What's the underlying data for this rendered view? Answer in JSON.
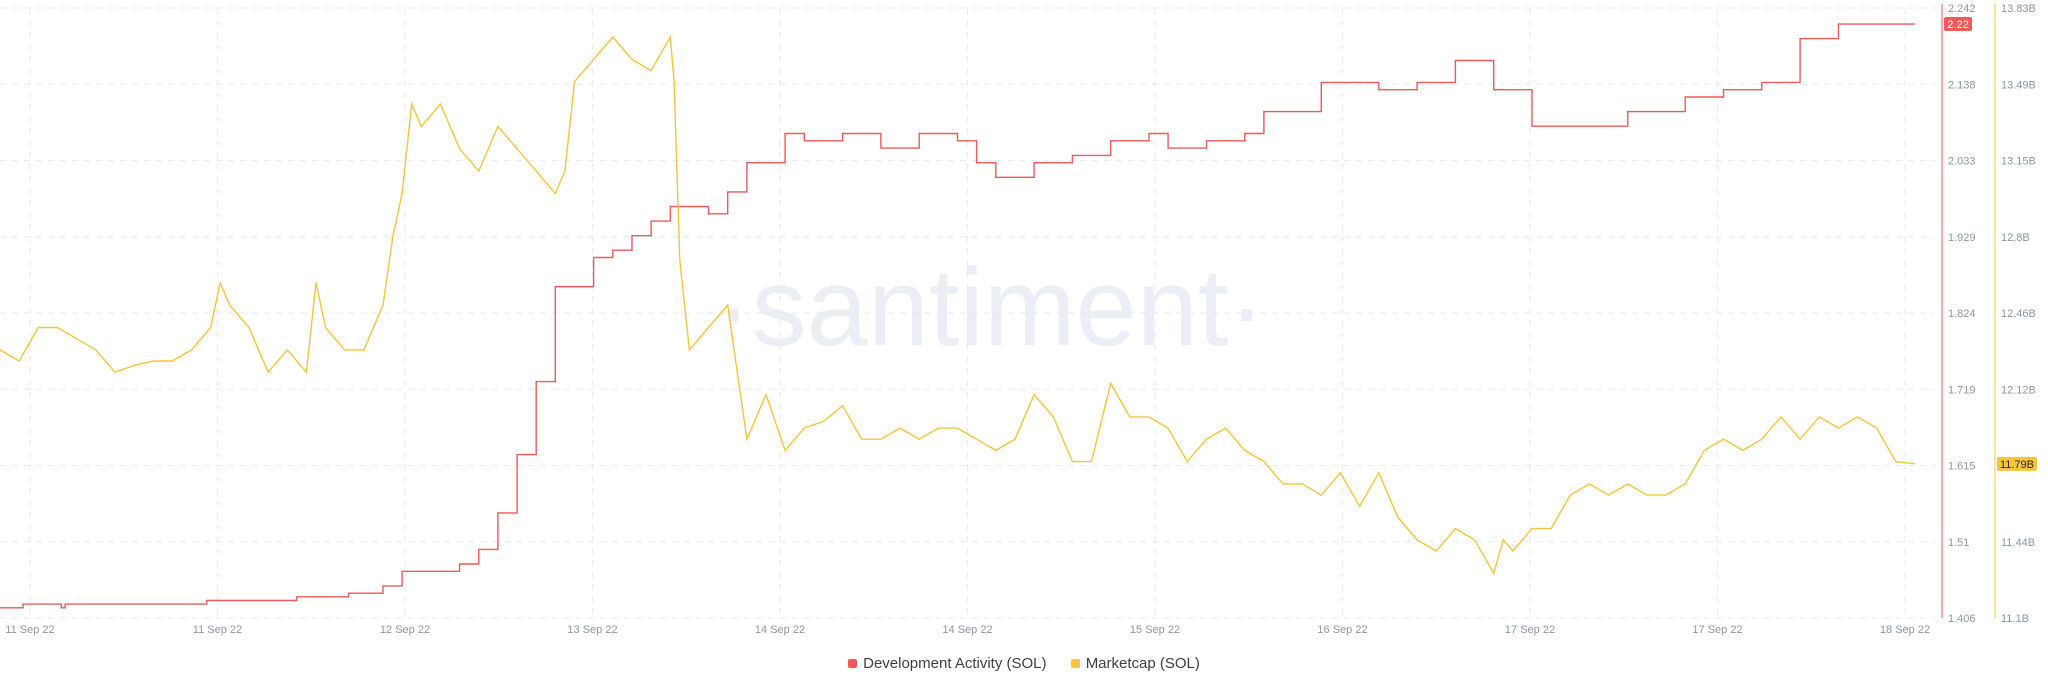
{
  "watermark": "·santiment·",
  "colors": {
    "dev": "#f05a5a",
    "mcap": "#f7c53c",
    "grid": "#e8eaf0",
    "axis_text": "#8e96a8"
  },
  "chart_data": {
    "type": "line",
    "x_labels": [
      "11 Sep 22",
      "11 Sep 22",
      "12 Sep 22",
      "13 Sep 22",
      "14 Sep 22",
      "14 Sep 22",
      "15 Sep 22",
      "16 Sep 22",
      "17 Sep 22",
      "17 Sep 22",
      "18 Sep 22"
    ],
    "grid": true,
    "legend_position": "bottom-center",
    "y_left": {
      "ticks": [
        "2.242",
        "2.138",
        "2.033",
        "1.929",
        "1.824",
        "1.719",
        "1.615",
        "1.51",
        "1.406"
      ],
      "range": [
        1.406,
        2.242
      ],
      "current_value": "2.22"
    },
    "y_right": {
      "ticks": [
        "13.83B",
        "13.49B",
        "13.15B",
        "12.8B",
        "12.46B",
        "12.12B",
        "11.79B",
        "11.44B",
        "11.1B"
      ],
      "range": [
        11.1,
        13.83
      ],
      "current_value": "11.79B"
    },
    "series": [
      {
        "name": "Development Activity (SOL)",
        "axis": "left",
        "step": true,
        "points": [
          [
            0,
            1.42
          ],
          [
            0.01,
            1.42
          ],
          [
            0.012,
            1.425
          ],
          [
            0.03,
            1.425
          ],
          [
            0.032,
            1.42
          ],
          [
            0.034,
            1.425
          ],
          [
            0.1,
            1.425
          ],
          [
            0.108,
            1.43
          ],
          [
            0.15,
            1.43
          ],
          [
            0.155,
            1.435
          ],
          [
            0.18,
            1.435
          ],
          [
            0.182,
            1.44
          ],
          [
            0.185,
            1.44
          ],
          [
            0.2,
            1.45
          ],
          [
            0.21,
            1.47
          ],
          [
            0.24,
            1.48
          ],
          [
            0.25,
            1.5
          ],
          [
            0.26,
            1.55
          ],
          [
            0.27,
            1.63
          ],
          [
            0.28,
            1.73
          ],
          [
            0.29,
            1.86
          ],
          [
            0.31,
            1.9
          ],
          [
            0.32,
            1.91
          ],
          [
            0.33,
            1.93
          ],
          [
            0.34,
            1.95
          ],
          [
            0.35,
            1.97
          ],
          [
            0.36,
            1.97
          ],
          [
            0.37,
            1.96
          ],
          [
            0.38,
            1.99
          ],
          [
            0.39,
            2.03
          ],
          [
            0.41,
            2.07
          ],
          [
            0.42,
            2.06
          ],
          [
            0.44,
            2.07
          ],
          [
            0.46,
            2.05
          ],
          [
            0.48,
            2.07
          ],
          [
            0.5,
            2.06
          ],
          [
            0.51,
            2.03
          ],
          [
            0.52,
            2.01
          ],
          [
            0.54,
            2.03
          ],
          [
            0.56,
            2.04
          ],
          [
            0.58,
            2.06
          ],
          [
            0.6,
            2.07
          ],
          [
            0.61,
            2.05
          ],
          [
            0.63,
            2.06
          ],
          [
            0.65,
            2.07
          ],
          [
            0.66,
            2.1
          ],
          [
            0.69,
            2.14
          ],
          [
            0.72,
            2.13
          ],
          [
            0.74,
            2.14
          ],
          [
            0.76,
            2.15
          ],
          [
            0.76,
            2.17
          ],
          [
            0.78,
            2.13
          ],
          [
            0.8,
            2.08
          ],
          [
            0.82,
            2.08
          ],
          [
            0.85,
            2.1
          ],
          [
            0.88,
            2.12
          ],
          [
            0.9,
            2.13
          ],
          [
            0.92,
            2.14
          ],
          [
            0.94,
            2.2
          ],
          [
            0.96,
            2.22
          ],
          [
            1,
            2.22
          ]
        ]
      },
      {
        "name": "Marketcap (SOL)",
        "axis": "right",
        "step": false,
        "points": [
          [
            0,
            12.3
          ],
          [
            0.01,
            12.25
          ],
          [
            0.02,
            12.4
          ],
          [
            0.03,
            12.4
          ],
          [
            0.04,
            12.35
          ],
          [
            0.05,
            12.3
          ],
          [
            0.06,
            12.2
          ],
          [
            0.07,
            12.23
          ],
          [
            0.08,
            12.25
          ],
          [
            0.09,
            12.25
          ],
          [
            0.1,
            12.3
          ],
          [
            0.11,
            12.4
          ],
          [
            0.115,
            12.6
          ],
          [
            0.12,
            12.5
          ],
          [
            0.13,
            12.4
          ],
          [
            0.14,
            12.2
          ],
          [
            0.15,
            12.3
          ],
          [
            0.16,
            12.2
          ],
          [
            0.165,
            12.6
          ],
          [
            0.17,
            12.4
          ],
          [
            0.18,
            12.3
          ],
          [
            0.19,
            12.3
          ],
          [
            0.2,
            12.5
          ],
          [
            0.205,
            12.8
          ],
          [
            0.21,
            13.0
          ],
          [
            0.215,
            13.4
          ],
          [
            0.22,
            13.3
          ],
          [
            0.23,
            13.4
          ],
          [
            0.24,
            13.2
          ],
          [
            0.25,
            13.1
          ],
          [
            0.26,
            13.3
          ],
          [
            0.27,
            13.2
          ],
          [
            0.28,
            13.1
          ],
          [
            0.29,
            13.0
          ],
          [
            0.295,
            13.1
          ],
          [
            0.3,
            13.5
          ],
          [
            0.31,
            13.6
          ],
          [
            0.32,
            13.7
          ],
          [
            0.33,
            13.6
          ],
          [
            0.34,
            13.55
          ],
          [
            0.35,
            13.7
          ],
          [
            0.352,
            13.5
          ],
          [
            0.355,
            12.7
          ],
          [
            0.36,
            12.3
          ],
          [
            0.37,
            12.4
          ],
          [
            0.38,
            12.5
          ],
          [
            0.39,
            11.9
          ],
          [
            0.4,
            12.1
          ],
          [
            0.41,
            11.85
          ],
          [
            0.42,
            11.95
          ],
          [
            0.43,
            11.98
          ],
          [
            0.44,
            12.05
          ],
          [
            0.45,
            11.9
          ],
          [
            0.46,
            11.9
          ],
          [
            0.47,
            11.95
          ],
          [
            0.48,
            11.9
          ],
          [
            0.49,
            11.95
          ],
          [
            0.5,
            11.95
          ],
          [
            0.51,
            11.9
          ],
          [
            0.52,
            11.85
          ],
          [
            0.53,
            11.9
          ],
          [
            0.54,
            12.1
          ],
          [
            0.55,
            12.0
          ],
          [
            0.56,
            11.8
          ],
          [
            0.57,
            11.8
          ],
          [
            0.58,
            12.15
          ],
          [
            0.59,
            12.0
          ],
          [
            0.6,
            12.0
          ],
          [
            0.61,
            11.95
          ],
          [
            0.62,
            11.8
          ],
          [
            0.63,
            11.9
          ],
          [
            0.64,
            11.95
          ],
          [
            0.65,
            11.85
          ],
          [
            0.66,
            11.8
          ],
          [
            0.67,
            11.7
          ],
          [
            0.68,
            11.7
          ],
          [
            0.69,
            11.65
          ],
          [
            0.7,
            11.75
          ],
          [
            0.71,
            11.6
          ],
          [
            0.72,
            11.75
          ],
          [
            0.73,
            11.55
          ],
          [
            0.74,
            11.45
          ],
          [
            0.75,
            11.4
          ],
          [
            0.76,
            11.5
          ],
          [
            0.77,
            11.45
          ],
          [
            0.78,
            11.3
          ],
          [
            0.785,
            11.45
          ],
          [
            0.79,
            11.4
          ],
          [
            0.8,
            11.5
          ],
          [
            0.81,
            11.5
          ],
          [
            0.82,
            11.65
          ],
          [
            0.83,
            11.7
          ],
          [
            0.84,
            11.65
          ],
          [
            0.85,
            11.7
          ],
          [
            0.86,
            11.65
          ],
          [
            0.87,
            11.65
          ],
          [
            0.88,
            11.7
          ],
          [
            0.89,
            11.85
          ],
          [
            0.9,
            11.9
          ],
          [
            0.91,
            11.85
          ],
          [
            0.92,
            11.9
          ],
          [
            0.93,
            12.0
          ],
          [
            0.94,
            11.9
          ],
          [
            0.95,
            12.0
          ],
          [
            0.96,
            11.95
          ],
          [
            0.97,
            12.0
          ],
          [
            0.98,
            11.95
          ],
          [
            0.99,
            11.8
          ],
          [
            1,
            11.79
          ]
        ]
      }
    ]
  }
}
